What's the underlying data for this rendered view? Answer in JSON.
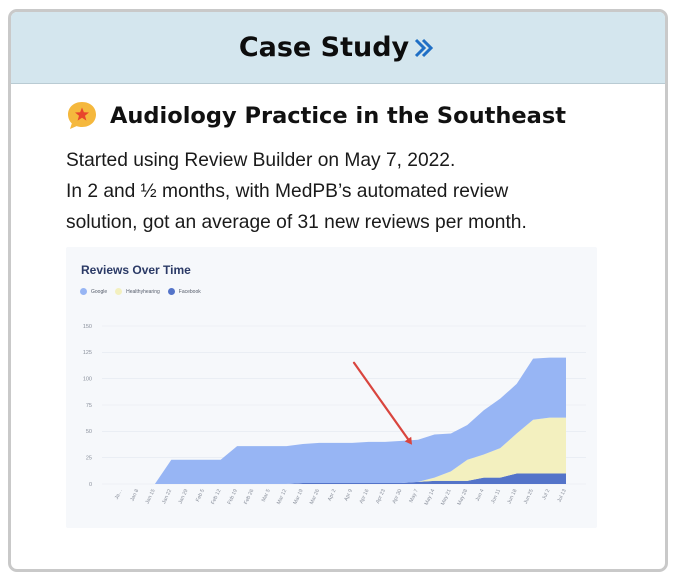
{
  "header": {
    "title": "Case Study"
  },
  "case": {
    "heading": "Audiology Practice in the Southeast",
    "lines": [
      "Started using Review Builder on May 7, 2022.",
      "In 2 and ½ months, with MedPB’s automated review",
      "solution, got an average of  31 new reviews per month."
    ]
  },
  "colors": {
    "header_bg": "#d4e6ee",
    "google": "#97b5f4",
    "healthyhearing": "#f3f0bf",
    "facebook": "#5474c9",
    "arrow": "#d9453e",
    "chevron": "#1f6fc5",
    "badge_bubble": "#f5b83d",
    "badge_star": "#e8452c"
  },
  "chart_data": {
    "type": "area",
    "stacked": true,
    "title": "Reviews Over Time",
    "xlabel": "",
    "ylabel": "",
    "ylim": [
      0,
      150
    ],
    "yticks": [
      0,
      25,
      50,
      75,
      100,
      125,
      150
    ],
    "grid": true,
    "legend_position": "top-left",
    "categories": [
      "Jan 1",
      "Jan 8",
      "Jan 15",
      "Jan 22",
      "Jan 29",
      "Feb 5",
      "Feb 12",
      "Feb 19",
      "Feb 26",
      "Mar 5",
      "Mar 12",
      "Mar 19",
      "Mar 26",
      "Apr 2",
      "Apr 9",
      "Apr 16",
      "Apr 23",
      "Apr 30",
      "May 7",
      "May 14",
      "May 21",
      "May 28",
      "Jun 4",
      "Jun 11",
      "Jun 18",
      "Jun 25",
      "Jul 2",
      "Jul 13"
    ],
    "tick_labels": [
      "Ja…",
      "Jan 8",
      "Jan 15",
      "Jan 22",
      "Jan 29",
      "Feb 5",
      "Feb 12",
      "Feb 19",
      "Feb 26",
      "Mar 5",
      "Mar 12",
      "Mar 19",
      "Mar 26",
      "Apr 2",
      "Apr 9",
      "Apr 16",
      "Apr 23",
      "Apr 30",
      "May 7",
      "May 14",
      "May 21",
      "May 28",
      "Jun 4",
      "Jun 11",
      "Jun 18",
      "Jun 25",
      "Jul 2",
      "Jul 13"
    ],
    "series": [
      {
        "name": "Facebook",
        "values": [
          0,
          0,
          0,
          0,
          0,
          0,
          0,
          0,
          0,
          0,
          0,
          1,
          1,
          1,
          1,
          1,
          1,
          1,
          2,
          3,
          3,
          3,
          6,
          6,
          10,
          10,
          10,
          10
        ]
      },
      {
        "name": "Healthyhearing",
        "values": [
          0,
          0,
          0,
          0,
          0,
          0,
          0,
          0,
          0,
          0,
          0,
          0,
          0,
          0,
          0,
          0,
          0,
          0,
          0,
          3,
          9,
          20,
          22,
          28,
          38,
          51,
          53,
          53
        ]
      },
      {
        "name": "Google",
        "values": [
          0,
          0,
          0,
          23,
          23,
          23,
          23,
          36,
          36,
          36,
          36,
          37,
          38,
          38,
          38,
          39,
          39,
          40,
          40,
          41,
          36,
          33,
          42,
          47,
          47,
          58,
          57,
          57
        ]
      }
    ],
    "legend_order": [
      "Google",
      "Healthyhearing",
      "Facebook"
    ],
    "annotation": {
      "type": "arrow",
      "points_to": "May 7"
    }
  }
}
